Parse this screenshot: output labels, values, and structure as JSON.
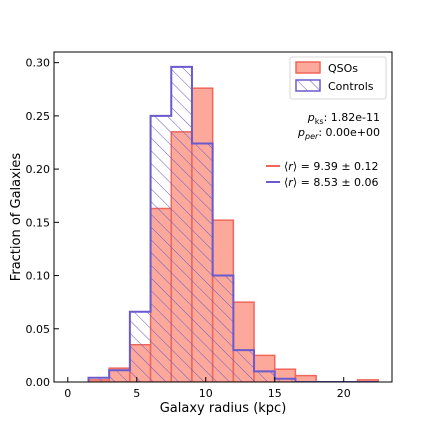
{
  "chart_data": {
    "type": "histogram",
    "xlabel": "Galaxy radius (kpc)",
    "ylabel": "Fraction of Galaxies",
    "xlim": [
      -1,
      23.5
    ],
    "ylim": [
      0,
      0.31
    ],
    "xticks": [
      0,
      5,
      10,
      15,
      20
    ],
    "xtick_labels": [
      "0",
      "5",
      "10",
      "15",
      "20"
    ],
    "yticks": [
      0.0,
      0.05,
      0.1,
      0.15,
      0.2,
      0.25,
      0.3
    ],
    "ytick_labels": [
      "0.00",
      "0.05",
      "0.10",
      "0.15",
      "0.20",
      "0.25",
      "0.30"
    ],
    "bin_edges": [
      1.5,
      3.0,
      4.5,
      6.0,
      7.5,
      9.0,
      10.5,
      12.0,
      13.5,
      15.0,
      16.5,
      18.0,
      19.5,
      21.0,
      22.5
    ],
    "series": [
      {
        "name": "QSOs",
        "style": "filled",
        "fill_color": "#fca89a",
        "edge_color": "#f0665a",
        "values": [
          0.002,
          0.013,
          0.035,
          0.163,
          0.235,
          0.276,
          0.152,
          0.075,
          0.025,
          0.012,
          0.006,
          0.0,
          0.0,
          0.002
        ]
      },
      {
        "name": "Controls",
        "style": "hatched",
        "edge_color": "#6a5acd",
        "values": [
          0.004,
          0.011,
          0.066,
          0.25,
          0.296,
          0.224,
          0.1,
          0.03,
          0.01,
          0.003,
          0.0,
          0.0,
          0.0,
          0.0
        ]
      }
    ],
    "legend_position": "top-right",
    "legend": [
      {
        "label": "QSOs",
        "swatch": "filled"
      },
      {
        "label": "Controls",
        "swatch": "hatched"
      }
    ],
    "annotations": {
      "p_ks_value": "1.82e-11",
      "p_per_value": "0.00e+00",
      "qso_mean": "9.39 ± 0.12",
      "control_mean": "8.53 ± 0.06"
    },
    "colors": {
      "qso_fill": "#fca89a",
      "qso_edge": "#f0665a",
      "control_edge": "#6a5acd"
    }
  }
}
